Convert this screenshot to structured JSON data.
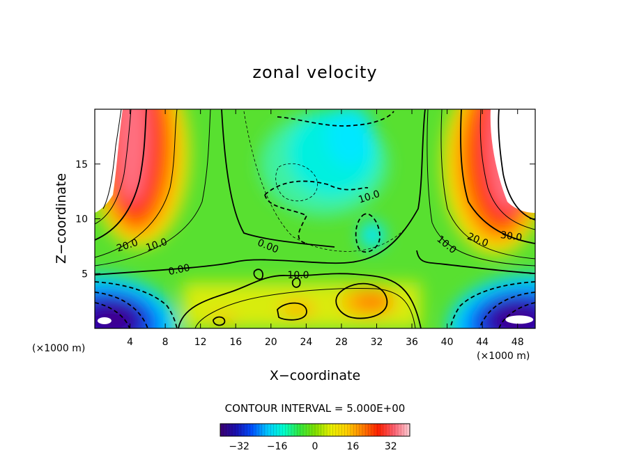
{
  "chart_data": {
    "type": "contour",
    "title": "zonal velocity",
    "xlabel": "X−coordinate",
    "ylabel": "Z−coordinate",
    "x_unit_label": "(×1000 m)",
    "y_unit_label": "(×1000 m)",
    "x_range": [
      0,
      50
    ],
    "y_range": [
      0,
      20
    ],
    "x_ticks": [
      "4",
      "8",
      "12",
      "16",
      "20",
      "24",
      "28",
      "32",
      "36",
      "40",
      "44",
      "48"
    ],
    "y_ticks": [
      "5",
      "10",
      "15"
    ],
    "contour_interval_text": "CONTOUR INTERVAL = 5.000E+00",
    "contour_interval": 5.0,
    "contour_labels": [
      "20.0",
      "10.0",
      "0.00",
      "0.00",
      "10.0",
      "10.0",
      "10.0",
      "20.0",
      "30.0"
    ],
    "colorbar": {
      "range": [
        -40,
        40
      ],
      "ticks": [
        "−32",
        "−16",
        "0",
        "16",
        "32"
      ],
      "colors": [
        "#3c0070",
        "#1a10b0",
        "#0050ff",
        "#00c8ff",
        "#00ffd0",
        "#30e840",
        "#7fe000",
        "#e8f000",
        "#ffd000",
        "#ff8000",
        "#ff2000",
        "#ff6070",
        "#ffd0d8"
      ]
    },
    "features": [
      {
        "kind": "jet",
        "x": 4.5,
        "z": 16,
        "value": 35,
        "description": "westerly jet upper left"
      },
      {
        "kind": "jet",
        "x": 45.5,
        "z": 14,
        "value": 35,
        "description": "westerly jet upper right"
      },
      {
        "kind": "min",
        "x": 2.5,
        "z": 1.0,
        "value": -30
      },
      {
        "kind": "min",
        "x": 47.5,
        "z": 1.0,
        "value": -30
      },
      {
        "kind": "min",
        "x": 25.5,
        "z": 13.5,
        "value": -8
      },
      {
        "kind": "max",
        "x": 31.5,
        "z": 2.5,
        "value": 25
      },
      {
        "kind": "max",
        "x": 23,
        "z": 1.8,
        "value": 20
      }
    ]
  }
}
